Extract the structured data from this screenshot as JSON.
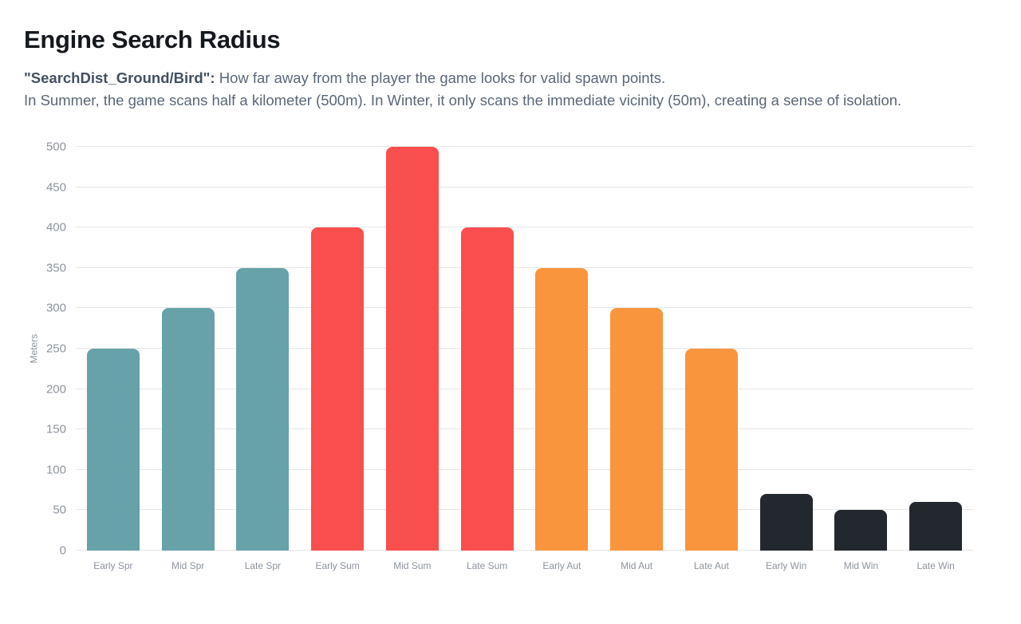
{
  "header": {
    "title": "Engine Search Radius",
    "description": {
      "lead_bold": "\"SearchDist_Ground/Bird\":",
      "lead_rest": " How far away from the player the game looks for valid spawn points.",
      "line2": "In Summer, the game scans half a kilometer (500m). In Winter, it only scans the immediate vicinity (50m), creating a sense of isolation."
    }
  },
  "chart_data": {
    "type": "bar",
    "title": "Engine Search Radius",
    "xlabel": "",
    "ylabel": "Meters",
    "categories": [
      "Early Spr",
      "Mid Spr",
      "Late Spr",
      "Early Sum",
      "Mid Sum",
      "Late Sum",
      "Early Aut",
      "Mid Aut",
      "Late Aut",
      "Early Win",
      "Mid Win",
      "Late Win"
    ],
    "values": [
      250,
      300,
      350,
      400,
      500,
      400,
      350,
      300,
      250,
      70,
      50,
      60
    ],
    "bar_colors": [
      "#66A2A8",
      "#66A2A8",
      "#66A2A8",
      "#F94F4F",
      "#F94F4F",
      "#F94F4F",
      "#F8953D",
      "#F8953D",
      "#F8953D",
      "#23272E",
      "#23272E",
      "#23272E"
    ],
    "season_colors": {
      "spring": "#66A2A8",
      "summer": "#F94F4F",
      "autumn": "#F8953D",
      "winter": "#23272E"
    },
    "ylim": [
      0,
      500
    ],
    "ytick_step": 50,
    "grid": true,
    "legend": false
  }
}
